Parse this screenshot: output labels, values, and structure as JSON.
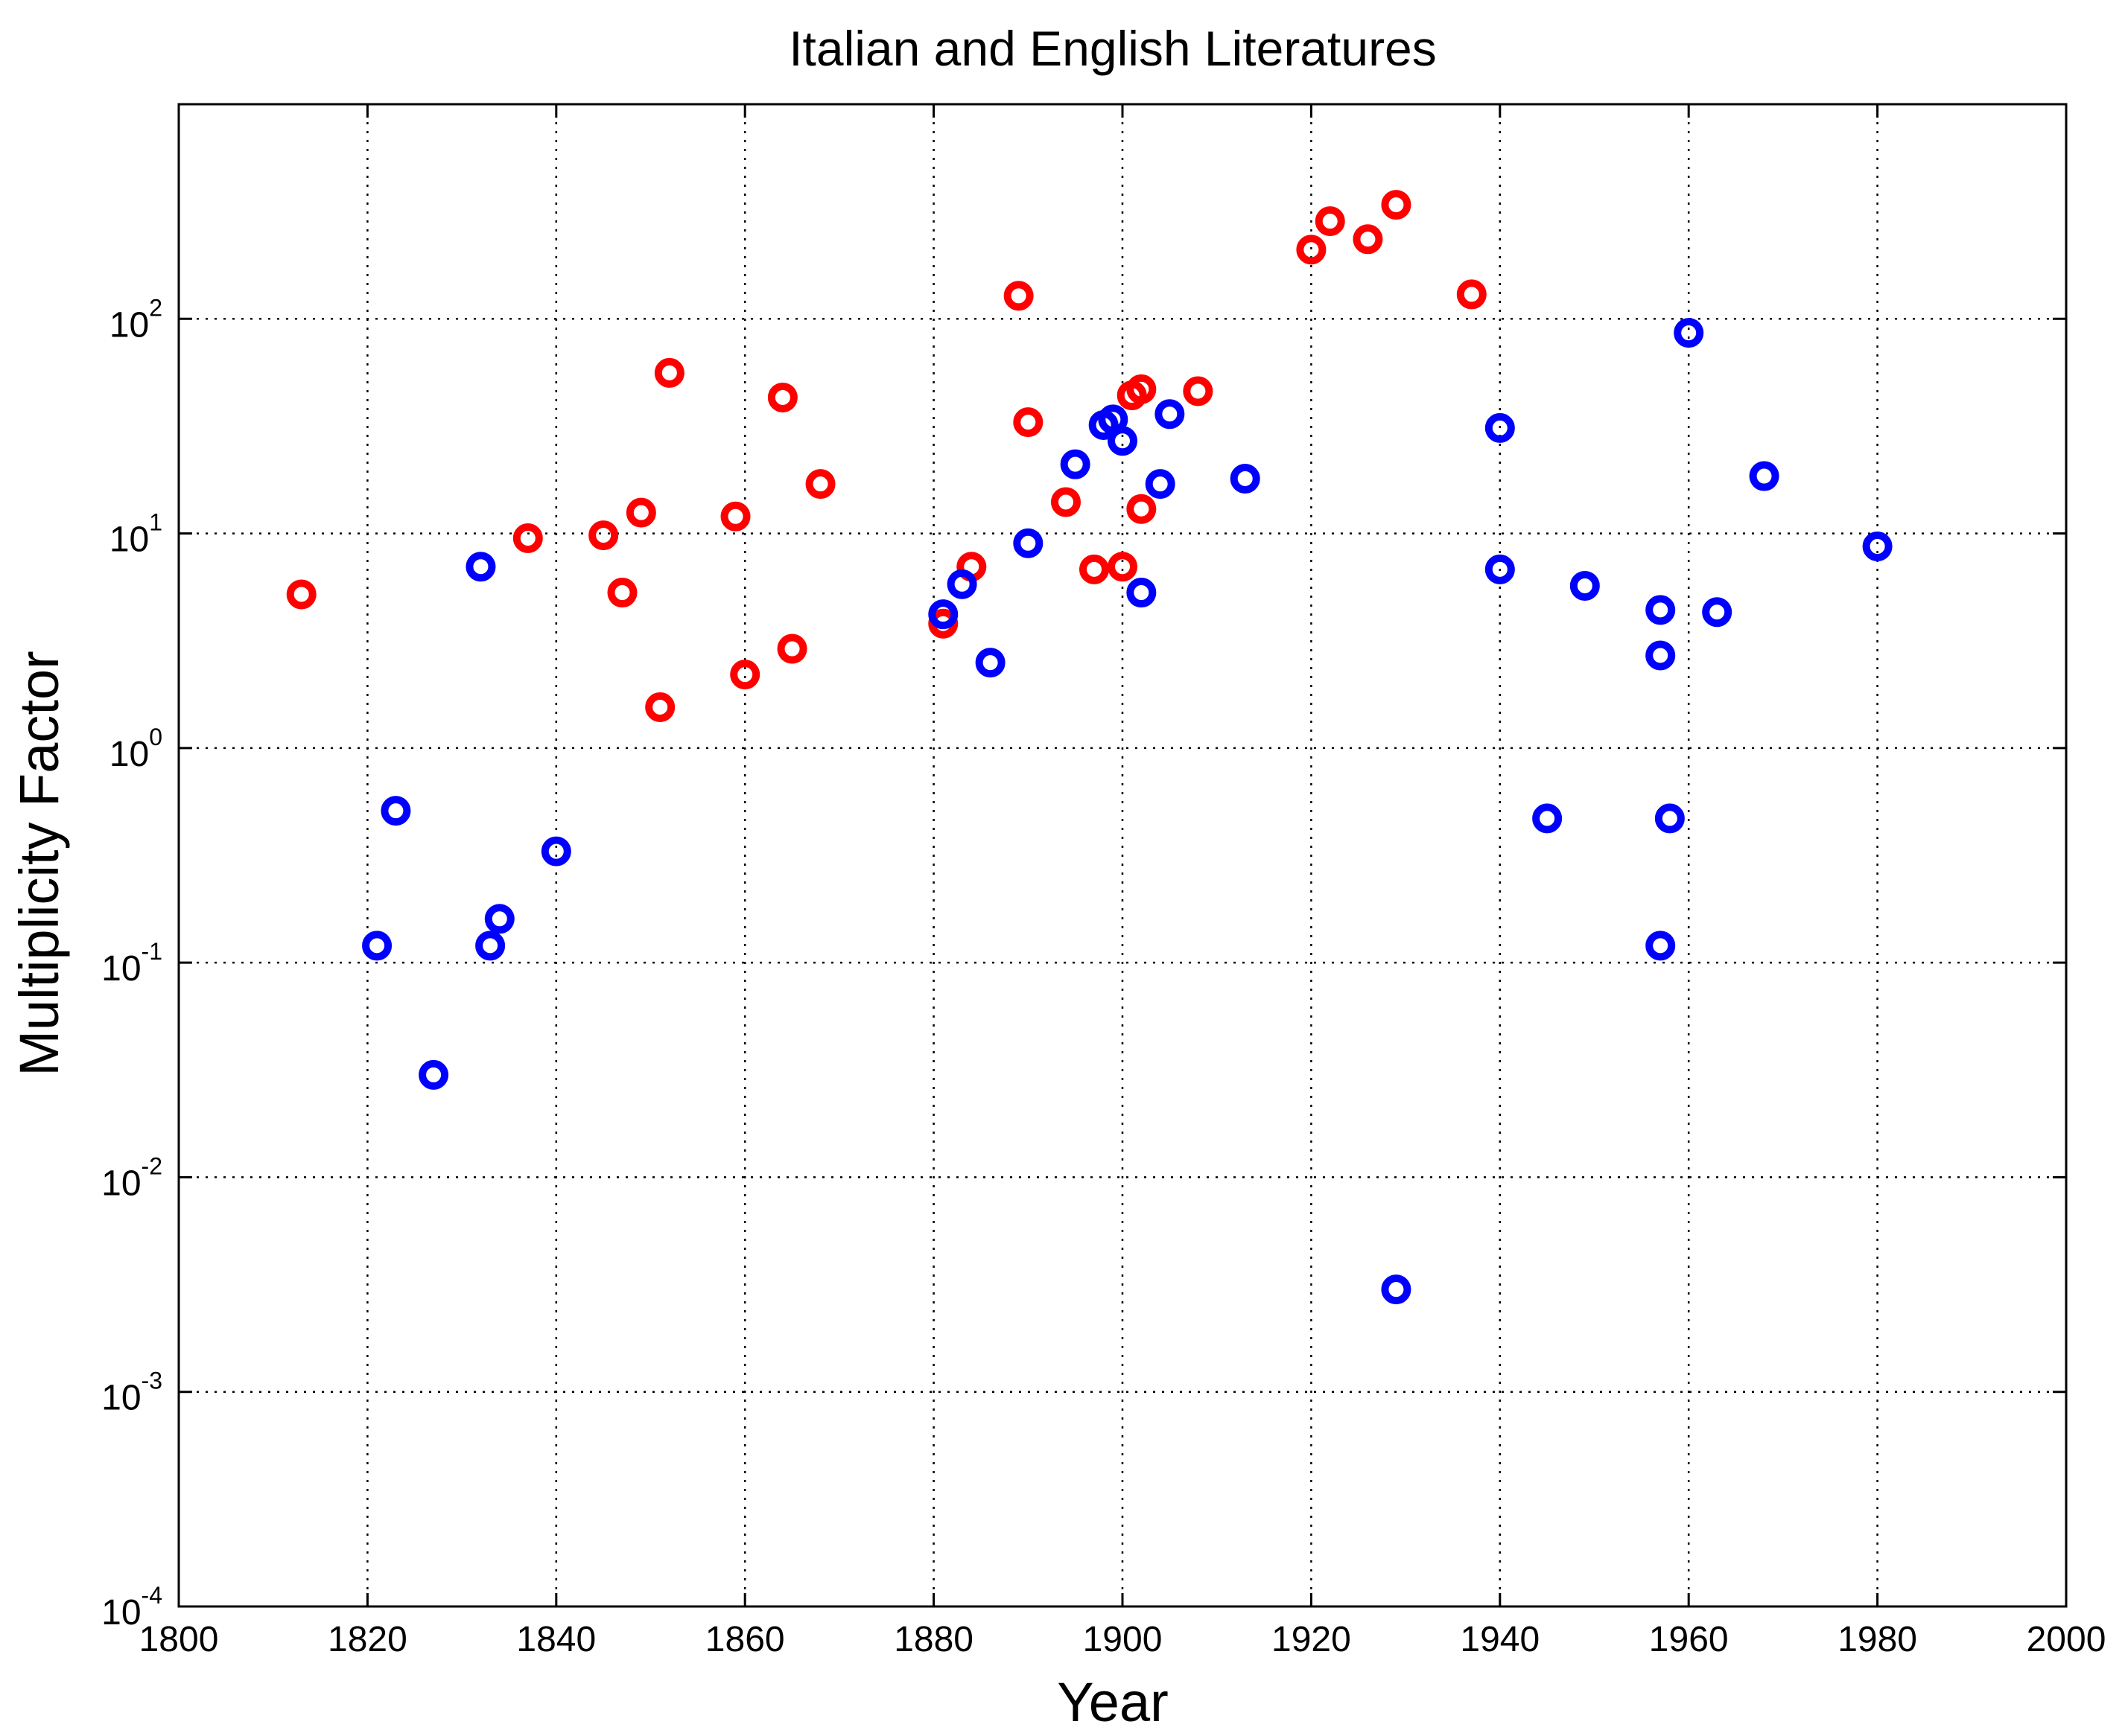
{
  "chart_data": {
    "type": "scatter",
    "title": "Italian and English Literatures",
    "xlabel": "Year",
    "ylabel": "Multiplicity Factor",
    "xlim": [
      1800,
      2000
    ],
    "ylim": [
      0.0001,
      1000
    ],
    "yscale": "log",
    "grid": true,
    "x_ticks": [
      {
        "value": 1800,
        "label": "1800"
      },
      {
        "value": 1820,
        "label": "1820"
      },
      {
        "value": 1840,
        "label": "1840"
      },
      {
        "value": 1860,
        "label": "1860"
      },
      {
        "value": 1880,
        "label": "1880"
      },
      {
        "value": 1900,
        "label": "1900"
      },
      {
        "value": 1920,
        "label": "1920"
      },
      {
        "value": 1940,
        "label": "1940"
      },
      {
        "value": 1960,
        "label": "1960"
      },
      {
        "value": 1980,
        "label": "1980"
      },
      {
        "value": 2000,
        "label": "2000"
      }
    ],
    "y_ticks": [
      {
        "value": 0.0001,
        "base": "10",
        "exp": "-4"
      },
      {
        "value": 0.001,
        "base": "10",
        "exp": "-3"
      },
      {
        "value": 0.01,
        "base": "10",
        "exp": "-2"
      },
      {
        "value": 0.1,
        "base": "10",
        "exp": "-1"
      },
      {
        "value": 1,
        "base": "10",
        "exp": "0"
      },
      {
        "value": 10,
        "base": "10",
        "exp": "1"
      },
      {
        "value": 100,
        "base": "10",
        "exp": "2"
      }
    ],
    "series": [
      {
        "color": "#ff0000",
        "points": [
          {
            "x": 1813,
            "y": 5.2
          },
          {
            "x": 1837,
            "y": 9.5
          },
          {
            "x": 1845,
            "y": 9.8
          },
          {
            "x": 1847,
            "y": 5.3
          },
          {
            "x": 1849,
            "y": 12.5
          },
          {
            "x": 1851,
            "y": 1.55
          },
          {
            "x": 1852,
            "y": 56
          },
          {
            "x": 1859,
            "y": 12
          },
          {
            "x": 1860,
            "y": 2.2
          },
          {
            "x": 1864,
            "y": 43
          },
          {
            "x": 1865,
            "y": 2.9
          },
          {
            "x": 1868,
            "y": 17
          },
          {
            "x": 1881,
            "y": 3.8
          },
          {
            "x": 1884,
            "y": 7
          },
          {
            "x": 1889,
            "y": 128
          },
          {
            "x": 1890,
            "y": 33
          },
          {
            "x": 1894,
            "y": 14
          },
          {
            "x": 1897,
            "y": 6.8
          },
          {
            "x": 1900,
            "y": 7
          },
          {
            "x": 1901,
            "y": 44
          },
          {
            "x": 1902,
            "y": 47
          },
          {
            "x": 1902,
            "y": 13
          },
          {
            "x": 1908,
            "y": 46
          },
          {
            "x": 1920,
            "y": 210
          },
          {
            "x": 1922,
            "y": 285
          },
          {
            "x": 1926,
            "y": 235
          },
          {
            "x": 1929,
            "y": 340
          },
          {
            "x": 1937,
            "y": 130
          }
        ]
      },
      {
        "color": "#0000ff",
        "points": [
          {
            "x": 1821,
            "y": 0.12
          },
          {
            "x": 1823,
            "y": 0.51
          },
          {
            "x": 1827,
            "y": 0.03
          },
          {
            "x": 1832,
            "y": 7
          },
          {
            "x": 1833,
            "y": 0.12
          },
          {
            "x": 1834,
            "y": 0.16
          },
          {
            "x": 1840,
            "y": 0.33
          },
          {
            "x": 1881,
            "y": 4.2
          },
          {
            "x": 1883,
            "y": 5.8
          },
          {
            "x": 1886,
            "y": 2.5
          },
          {
            "x": 1890,
            "y": 9
          },
          {
            "x": 1895,
            "y": 21
          },
          {
            "x": 1898,
            "y": 32
          },
          {
            "x": 1899,
            "y": 34
          },
          {
            "x": 1900,
            "y": 27
          },
          {
            "x": 1902,
            "y": 5.3
          },
          {
            "x": 1904,
            "y": 17
          },
          {
            "x": 1905,
            "y": 36
          },
          {
            "x": 1913,
            "y": 18
          },
          {
            "x": 1929,
            "y": 0.003
          },
          {
            "x": 1940,
            "y": 31
          },
          {
            "x": 1940,
            "y": 6.8
          },
          {
            "x": 1945,
            "y": 0.47
          },
          {
            "x": 1949,
            "y": 5.7
          },
          {
            "x": 1957,
            "y": 4.4
          },
          {
            "x": 1957,
            "y": 2.7
          },
          {
            "x": 1957,
            "y": 0.12
          },
          {
            "x": 1958,
            "y": 0.47
          },
          {
            "x": 1960,
            "y": 86
          },
          {
            "x": 1963,
            "y": 4.3
          },
          {
            "x": 1968,
            "y": 18.5
          },
          {
            "x": 1980,
            "y": 8.7
          }
        ]
      }
    ]
  }
}
